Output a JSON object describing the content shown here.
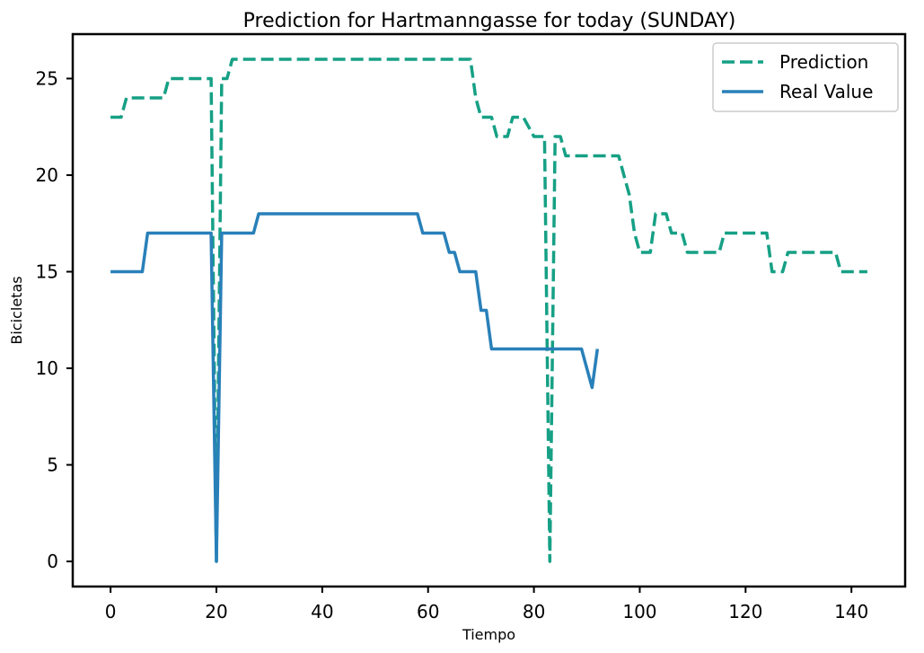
{
  "chart_data": {
    "type": "line",
    "title": "Prediction for Hartmanngasse for today (SUNDAY)",
    "xlabel": "Tiempo",
    "ylabel": "Bicicletas",
    "xlim": [
      -7.15,
      150.15
    ],
    "ylim": [
      -1.3,
      27.3
    ],
    "xticks": [
      0,
      20,
      40,
      60,
      80,
      100,
      120,
      140
    ],
    "yticks": [
      0,
      5,
      10,
      15,
      20,
      25
    ],
    "grid": false,
    "legend": "top-right",
    "series": [
      {
        "name": "Prediction",
        "color": "#16a085",
        "dash": "dashed",
        "points": [
          [
            0,
            23
          ],
          [
            2,
            23
          ],
          [
            3,
            24
          ],
          [
            10,
            24
          ],
          [
            11,
            25
          ],
          [
            19,
            25
          ],
          [
            20,
            0
          ],
          [
            21,
            25
          ],
          [
            22,
            25
          ],
          [
            23,
            26
          ],
          [
            68,
            26
          ],
          [
            69,
            24
          ],
          [
            70,
            23
          ],
          [
            72,
            23
          ],
          [
            73,
            22
          ],
          [
            75,
            22
          ],
          [
            76,
            23
          ],
          [
            78,
            23
          ],
          [
            80,
            22
          ],
          [
            82,
            22
          ],
          [
            83,
            0
          ],
          [
            84,
            22
          ],
          [
            85,
            22
          ],
          [
            86,
            21
          ],
          [
            96,
            21
          ],
          [
            97,
            20
          ],
          [
            98,
            19
          ],
          [
            99,
            17
          ],
          [
            100,
            16
          ],
          [
            102,
            16
          ],
          [
            103,
            18
          ],
          [
            105,
            18
          ],
          [
            106,
            17
          ],
          [
            108,
            17
          ],
          [
            109,
            16
          ],
          [
            115,
            16
          ],
          [
            116,
            17
          ],
          [
            124,
            17
          ],
          [
            125,
            15
          ],
          [
            127,
            15
          ],
          [
            128,
            16
          ],
          [
            137,
            16
          ],
          [
            138,
            15
          ],
          [
            143,
            15
          ]
        ]
      },
      {
        "name": "Real Value",
        "color": "#2980b9",
        "dash": "solid",
        "points": [
          [
            0,
            15
          ],
          [
            6,
            15
          ],
          [
            7,
            17
          ],
          [
            19,
            17
          ],
          [
            20,
            0
          ],
          [
            21,
            17
          ],
          [
            27,
            17
          ],
          [
            28,
            18
          ],
          [
            58,
            18
          ],
          [
            59,
            17
          ],
          [
            63,
            17
          ],
          [
            64,
            16
          ],
          [
            65,
            16
          ],
          [
            66,
            15
          ],
          [
            69,
            15
          ],
          [
            70,
            13
          ],
          [
            71,
            13
          ],
          [
            72,
            11
          ],
          [
            89,
            11
          ],
          [
            91,
            9
          ],
          [
            92,
            11
          ]
        ]
      }
    ]
  }
}
